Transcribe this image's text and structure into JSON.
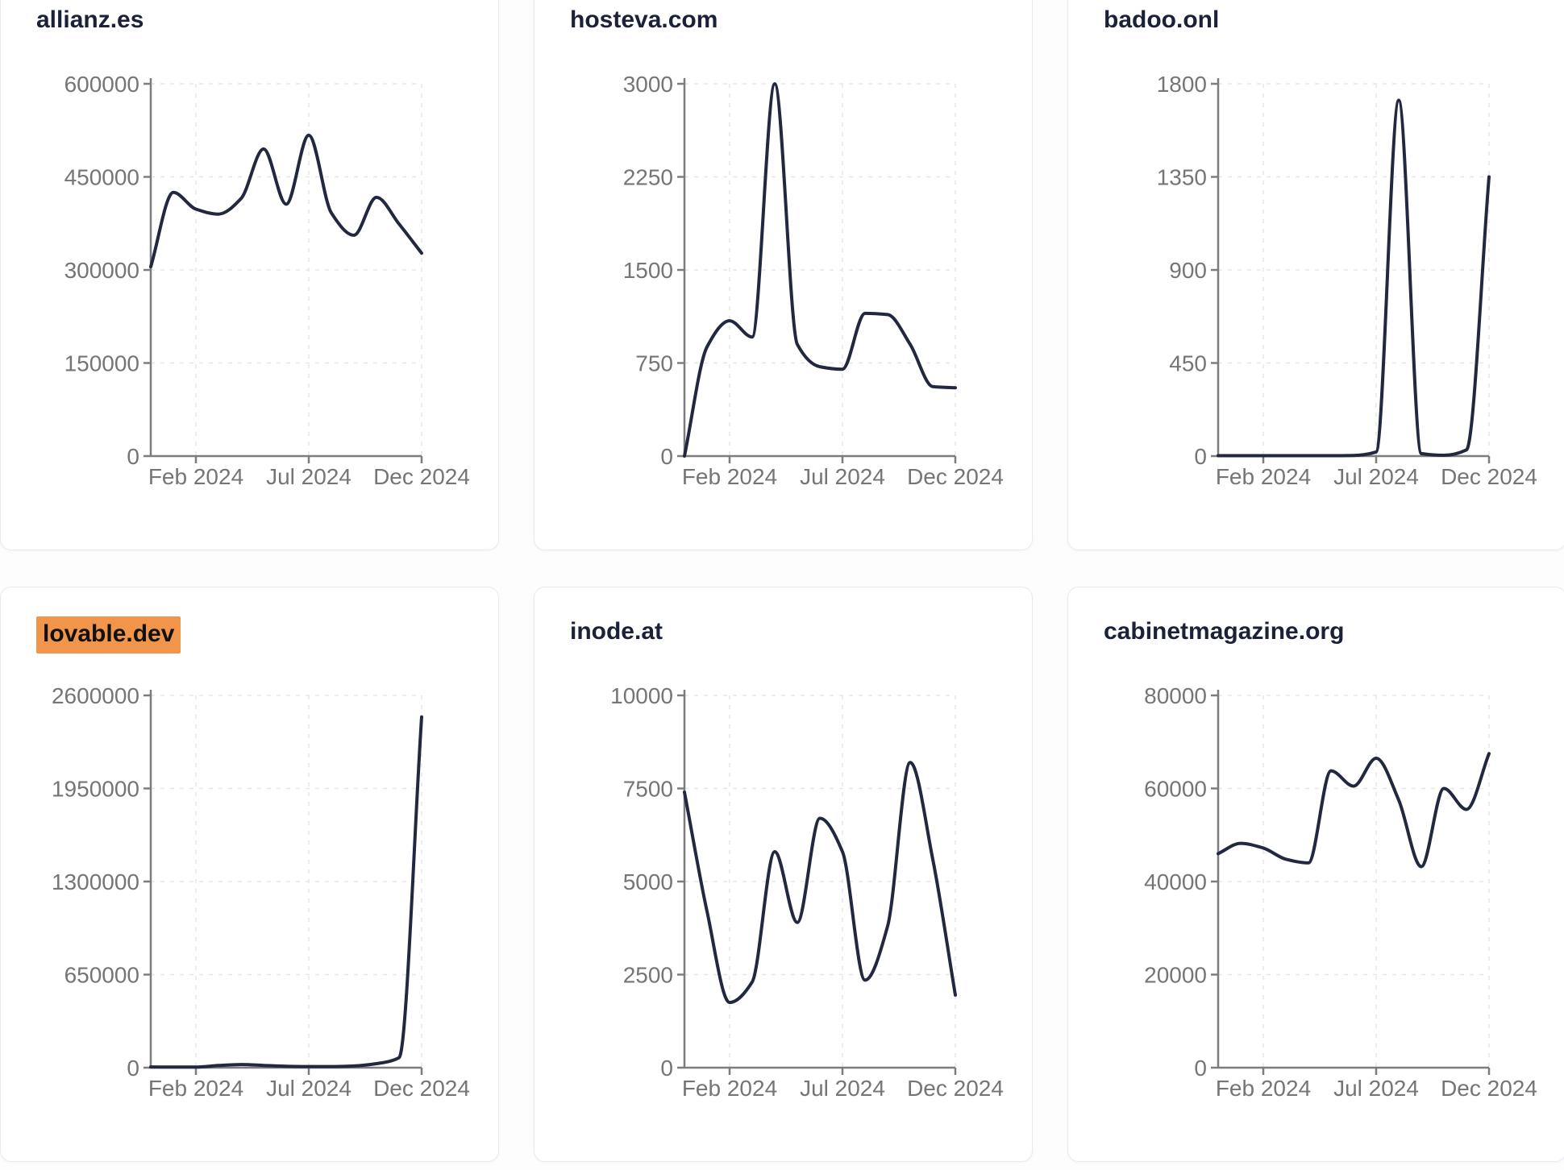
{
  "page": {
    "background": "#fdfdfe",
    "card_background": "#ffffff",
    "card_border_color": "#e7eaf2",
    "line_color": "#212840",
    "title_color": "#1a2138",
    "tick_label_color": "#757575",
    "axis_color": "#7d7d7d",
    "grid_color": "#e7e7e7",
    "highlight_color": "#f0954a",
    "highlight_text_color": "#111111"
  },
  "chart_data": [
    {
      "type": "line",
      "title": "allianz.es",
      "highlight": false,
      "x": [
        "Dec 2023",
        "Jan 2024",
        "Feb 2024",
        "Mar 2024",
        "Apr 2024",
        "May 2024",
        "Jun 2024",
        "Jul 2024",
        "Aug 2024",
        "Sep 2024",
        "Oct 2024",
        "Nov 2024",
        "Dec 2024"
      ],
      "values": [
        305000,
        425000,
        398000,
        390000,
        415000,
        495000,
        406000,
        517000,
        392000,
        356000,
        417000,
        374000,
        327000
      ],
      "ylim": [
        0,
        600000
      ],
      "y_ticks": [
        0,
        150000,
        300000,
        450000,
        600000
      ],
      "x_tick_labels": [
        "Feb 2024",
        "Jul 2024",
        "Dec 2024"
      ],
      "x_tick_index": [
        2,
        7,
        12
      ],
      "grid": "dashed",
      "legend": "none"
    },
    {
      "type": "line",
      "title": "hosteva.com",
      "highlight": false,
      "x": [
        "Dec 2023",
        "Jan 2024",
        "Feb 2024",
        "Mar 2024",
        "Apr 2024",
        "May 2024",
        "Jun 2024",
        "Jul 2024",
        "Aug 2024",
        "Sep 2024",
        "Oct 2024",
        "Nov 2024",
        "Dec 2024"
      ],
      "values": [
        0,
        880,
        1090,
        960,
        3000,
        900,
        720,
        700,
        1150,
        1140,
        900,
        560,
        550
      ],
      "ylim": [
        0,
        3000
      ],
      "y_ticks": [
        0,
        750,
        1500,
        2250,
        3000
      ],
      "x_tick_labels": [
        "Feb 2024",
        "Jul 2024",
        "Dec 2024"
      ],
      "x_tick_index": [
        2,
        7,
        12
      ],
      "grid": "dashed",
      "legend": "none"
    },
    {
      "type": "line",
      "title": "badoo.onl",
      "highlight": false,
      "x": [
        "Dec 2023",
        "Jan 2024",
        "Feb 2024",
        "Mar 2024",
        "Apr 2024",
        "May 2024",
        "Jun 2024",
        "Jul 2024",
        "Aug 2024",
        "Sep 2024",
        "Oct 2024",
        "Nov 2024",
        "Dec 2024"
      ],
      "values": [
        2,
        2,
        2,
        2,
        2,
        2,
        3,
        20,
        1720,
        12,
        4,
        30,
        1350
      ],
      "ylim": [
        0,
        1800
      ],
      "y_ticks": [
        0,
        450,
        900,
        1350,
        1800
      ],
      "x_tick_labels": [
        "Feb 2024",
        "Jul 2024",
        "Dec 2024"
      ],
      "x_tick_index": [
        2,
        7,
        12
      ],
      "grid": "dashed",
      "legend": "none"
    },
    {
      "type": "line",
      "title": "lovable.dev",
      "highlight": true,
      "x": [
        "Dec 2023",
        "Jan 2024",
        "Feb 2024",
        "Mar 2024",
        "Apr 2024",
        "May 2024",
        "Jun 2024",
        "Jul 2024",
        "Aug 2024",
        "Sep 2024",
        "Oct 2024",
        "Nov 2024",
        "Dec 2024"
      ],
      "values": [
        5000,
        4000,
        4000,
        15000,
        22000,
        16000,
        10000,
        8000,
        8000,
        12000,
        28000,
        70000,
        2450000
      ],
      "ylim": [
        0,
        2600000
      ],
      "y_ticks": [
        0,
        650000,
        1300000,
        1950000,
        2600000
      ],
      "x_tick_labels": [
        "Feb 2024",
        "Jul 2024",
        "Dec 2024"
      ],
      "x_tick_index": [
        2,
        7,
        12
      ],
      "grid": "dashed",
      "legend": "none"
    },
    {
      "type": "line",
      "title": "inode.at",
      "highlight": false,
      "x": [
        "Dec 2023",
        "Jan 2024",
        "Feb 2024",
        "Mar 2024",
        "Apr 2024",
        "May 2024",
        "Jun 2024",
        "Jul 2024",
        "Aug 2024",
        "Sep 2024",
        "Oct 2024",
        "Nov 2024",
        "Dec 2024"
      ],
      "values": [
        7400,
        4200,
        1750,
        2300,
        5800,
        3900,
        6700,
        5800,
        2350,
        3800,
        8200,
        5600,
        1950
      ],
      "ylim": [
        0,
        10000
      ],
      "y_ticks": [
        0,
        2500,
        5000,
        7500,
        10000
      ],
      "x_tick_labels": [
        "Feb 2024",
        "Jul 2024",
        "Dec 2024"
      ],
      "x_tick_index": [
        2,
        7,
        12
      ],
      "grid": "dashed",
      "legend": "none"
    },
    {
      "type": "line",
      "title": "cabinetmagazine.org",
      "highlight": false,
      "x": [
        "Dec 2023",
        "Jan 2024",
        "Feb 2024",
        "Mar 2024",
        "Apr 2024",
        "May 2024",
        "Jun 2024",
        "Jul 2024",
        "Aug 2024",
        "Sep 2024",
        "Oct 2024",
        "Nov 2024",
        "Dec 2024"
      ],
      "values": [
        46000,
        48200,
        47200,
        44800,
        44000,
        63800,
        60500,
        66500,
        57500,
        43200,
        60000,
        55500,
        67500
      ],
      "ylim": [
        0,
        80000
      ],
      "y_ticks": [
        0,
        20000,
        40000,
        60000,
        80000
      ],
      "x_tick_labels": [
        "Feb 2024",
        "Jul 2024",
        "Dec 2024"
      ],
      "x_tick_index": [
        2,
        7,
        12
      ],
      "grid": "dashed",
      "legend": "none"
    }
  ]
}
